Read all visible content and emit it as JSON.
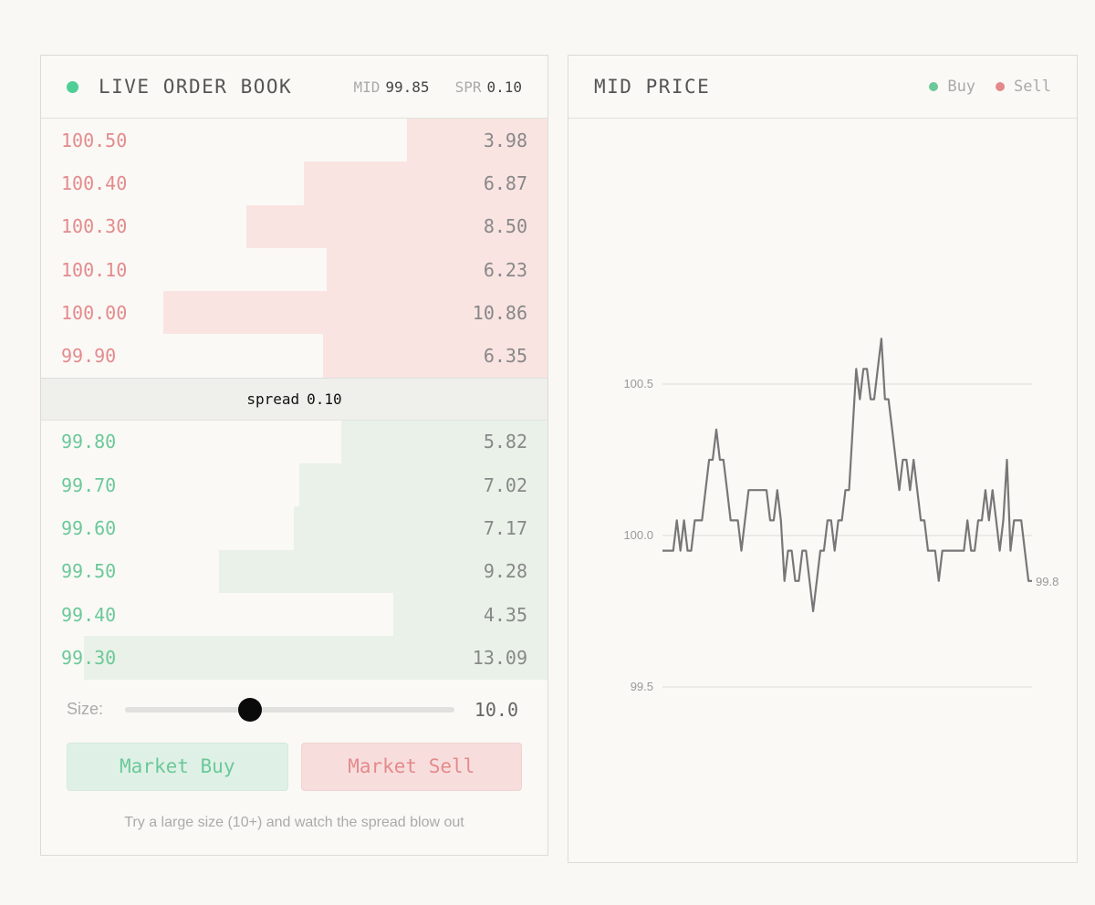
{
  "colors": {
    "buy": "#6cc899",
    "sell": "#e48a8c",
    "live": "#4fcf95",
    "line": "#777777"
  },
  "order_book": {
    "title": "LIVE ORDER BOOK",
    "live_icon": "status-dot-icon",
    "mid_label": "MID",
    "mid_value": "99.85",
    "spr_label": "SPR",
    "spr_value": "0.10",
    "asks": [
      {
        "price": "100.50",
        "qty": "3.98"
      },
      {
        "price": "100.40",
        "qty": "6.87"
      },
      {
        "price": "100.30",
        "qty": "8.50"
      },
      {
        "price": "100.10",
        "qty": "6.23"
      },
      {
        "price": "100.00",
        "qty": "10.86"
      },
      {
        "price": "99.90",
        "qty": "6.35"
      }
    ],
    "spread_label": "spread",
    "spread_value": "0.10",
    "bids": [
      {
        "price": "99.80",
        "qty": "5.82"
      },
      {
        "price": "99.70",
        "qty": "7.02"
      },
      {
        "price": "99.60",
        "qty": "7.17"
      },
      {
        "price": "99.50",
        "qty": "9.28"
      },
      {
        "price": "99.40",
        "qty": "4.35"
      },
      {
        "price": "99.30",
        "qty": "13.09"
      }
    ],
    "size_label": "Size:",
    "size_value": "10.0",
    "size_slider_fraction": 0.38,
    "buy_button": "Market Buy",
    "sell_button": "Market Sell",
    "hint": "Try a large size (10+) and watch the spread blow out"
  },
  "mid_price_panel": {
    "title": "MID PRICE",
    "legend": [
      {
        "label": "Buy",
        "color": "#6cc899"
      },
      {
        "label": "Sell",
        "color": "#e48a8c"
      }
    ]
  },
  "chart_data": {
    "type": "line",
    "title": "MID PRICE",
    "ylim": [
      99.3,
      100.8
    ],
    "yticks": [
      100.5,
      100.0,
      99.5
    ],
    "ytick_labels": [
      "100.5",
      "100.0",
      "99.5"
    ],
    "grid": true,
    "last_value_label": "99.8",
    "series": [
      {
        "values": [
          99.95,
          99.95,
          99.95,
          99.95,
          100.05,
          99.95,
          100.05,
          99.95,
          99.95,
          100.05,
          100.05,
          100.05,
          100.15,
          100.25,
          100.25,
          100.35,
          100.25,
          100.25,
          100.15,
          100.05,
          100.05,
          100.05,
          99.95,
          100.05,
          100.15,
          100.15,
          100.15,
          100.15,
          100.15,
          100.15,
          100.05,
          100.05,
          100.15,
          100.05,
          99.85,
          99.95,
          99.95,
          99.85,
          99.85,
          99.95,
          99.95,
          99.85,
          99.75,
          99.85,
          99.95,
          99.95,
          100.05,
          100.05,
          99.95,
          100.05,
          100.05,
          100.15,
          100.15,
          100.35,
          100.55,
          100.45,
          100.55,
          100.55,
          100.45,
          100.45,
          100.55,
          100.65,
          100.45,
          100.45,
          100.35,
          100.25,
          100.15,
          100.25,
          100.25,
          100.15,
          100.25,
          100.15,
          100.05,
          100.05,
          99.95,
          99.95,
          99.95,
          99.85,
          99.95,
          99.95,
          99.95,
          99.95,
          99.95,
          99.95,
          99.95,
          100.05,
          99.95,
          99.95,
          100.05,
          100.05,
          100.15,
          100.05,
          100.15,
          100.05,
          99.95,
          100.05,
          100.25,
          99.95,
          100.05,
          100.05,
          100.05,
          99.95,
          99.85,
          99.85
        ]
      }
    ]
  }
}
